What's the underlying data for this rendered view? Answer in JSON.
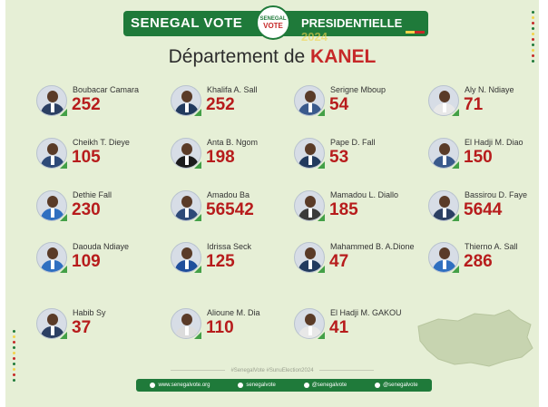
{
  "brand": {
    "left": "SENEGAL VOTE",
    "badge_top": "SENEGAL",
    "badge_main": "VOTE",
    "right": "PRESIDENTIELLE",
    "year": "2024"
  },
  "title": {
    "prefix": "Département de",
    "department": "KANEL"
  },
  "candidates": [
    {
      "name": "Boubacar Camara",
      "votes": "252"
    },
    {
      "name": "Khalifa A. Sall",
      "votes": "252"
    },
    {
      "name": "Serigne Mboup",
      "votes": "54"
    },
    {
      "name": "Aly N. Ndiaye",
      "votes": "71"
    },
    {
      "name": "Cheikh T. Dieye",
      "votes": "105"
    },
    {
      "name": "Anta B. Ngom",
      "votes": "198"
    },
    {
      "name": "Pape D. Fall",
      "votes": "53"
    },
    {
      "name": "El Hadji M. Diao",
      "votes": "150"
    },
    {
      "name": "Dethie Fall",
      "votes": "230"
    },
    {
      "name": "Amadou Ba",
      "votes": "56542"
    },
    {
      "name": "Mamadou L. Diallo",
      "votes": "185"
    },
    {
      "name": "Bassirou D. Faye",
      "votes": "5644"
    },
    {
      "name": "Daouda Ndiaye",
      "votes": "109"
    },
    {
      "name": "Idrissa Seck",
      "votes": "125"
    },
    {
      "name": "Mahammed B. A.Dione",
      "votes": "47"
    },
    {
      "name": "Thierno A. Sall",
      "votes": "286"
    },
    {
      "name": "Habib Sy",
      "votes": "37"
    },
    {
      "name": "Alioune M. Dia",
      "votes": "110"
    },
    {
      "name": "El Hadji M. GAKOU",
      "votes": "41"
    }
  ],
  "hashtags": "#SenegalVote   #SunuElection2024",
  "footer": {
    "website": "www.senegalvote.org",
    "facebook": "senegalvote",
    "instagram": "@senegalvote",
    "twitter": "@senegalvote"
  },
  "colors": {
    "green": "#1f7a3a",
    "red": "#b71c1c",
    "background": "#e6efd6"
  }
}
